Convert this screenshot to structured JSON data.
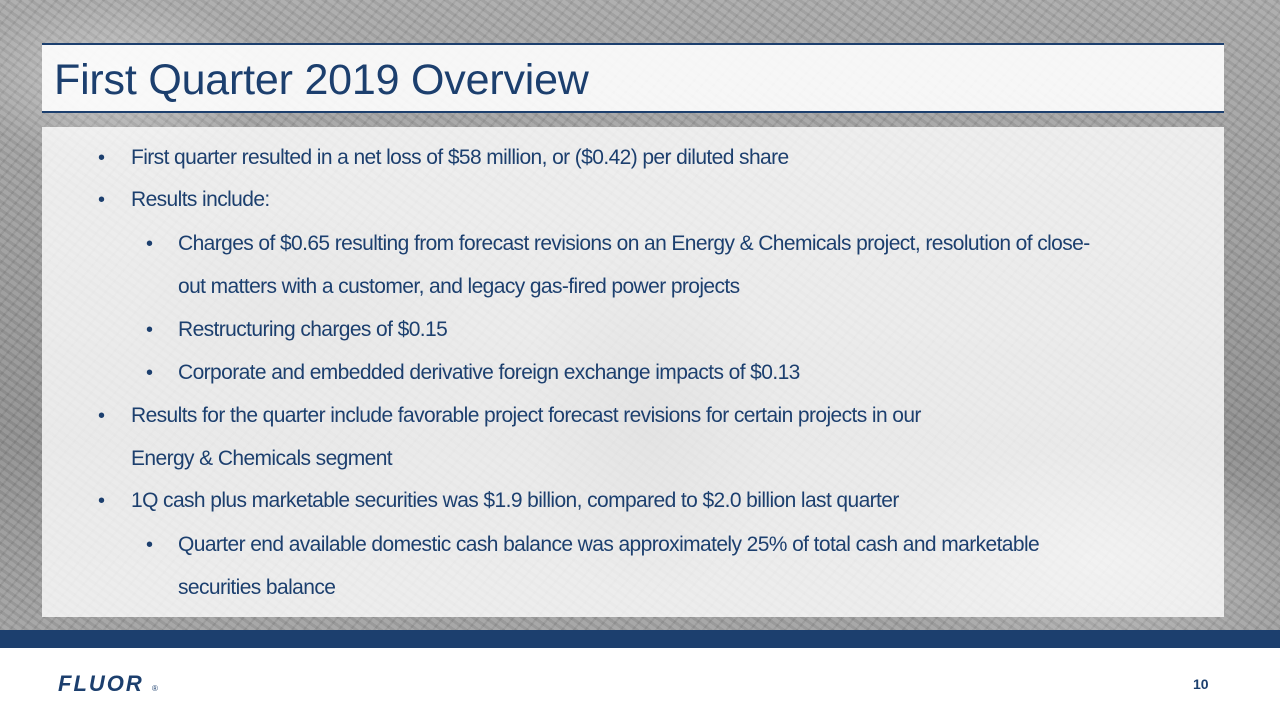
{
  "slide": {
    "title": "First Quarter 2019 Overview",
    "bullet_char": "•",
    "bullets": [
      {
        "text": "First quarter resulted in a net loss of $58 million, or ($0.42) per diluted share"
      },
      {
        "text": "Results include:"
      },
      {
        "text": "Charges of $0.65 resulting from forecast revisions on an Energy & Chemicals project, resolution of close-"
      },
      {
        "text": "out matters with a customer, and legacy gas-fired power projects"
      },
      {
        "text": "Restructuring charges of $0.15"
      },
      {
        "text": "Corporate and embedded derivative foreign exchange impacts of $0.13"
      },
      {
        "text": "Results for the quarter include favorable project forecast revisions for certain projects in our"
      },
      {
        "text": "Energy & Chemicals segment"
      },
      {
        "text": "1Q cash plus marketable securities was $1.9 billion, compared to $2.0 billion last quarter"
      },
      {
        "text": "Quarter end available domestic cash balance was approximately 25% of total cash and marketable"
      },
      {
        "text": "securities balance"
      }
    ]
  },
  "footer": {
    "logo_text": "FLUOR",
    "logo_mark": "®",
    "page_number": "10"
  },
  "colors": {
    "brand_navy": "#1c3f6e"
  }
}
